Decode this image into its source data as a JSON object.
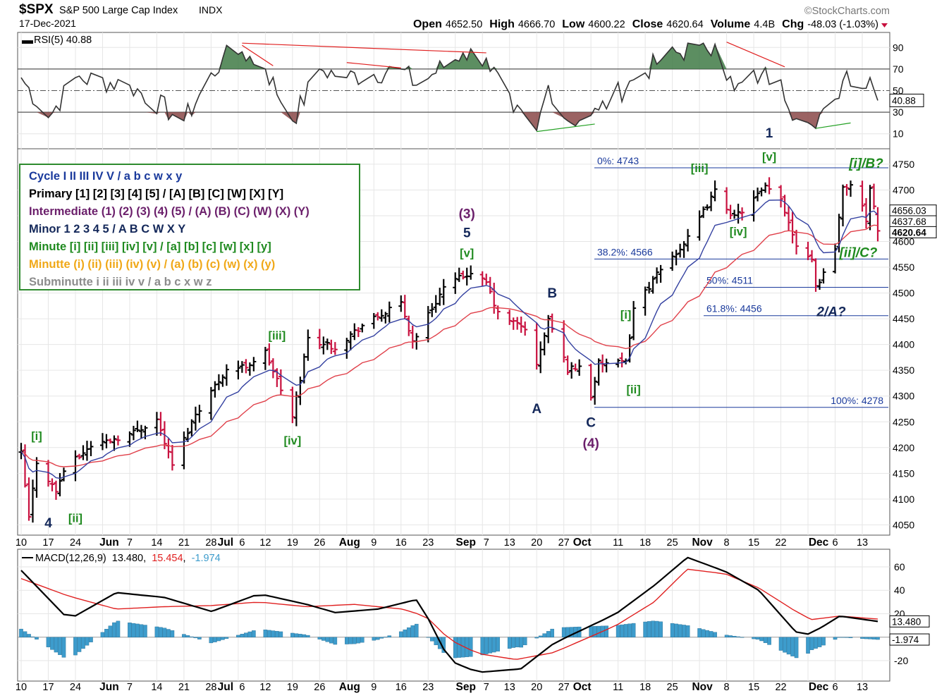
{
  "header": {
    "symbol": "$SPX",
    "name": "S&P 500 Large Cap Index",
    "exchange": "INDX",
    "date": "17-Dec-2021",
    "source": "©StockCharts.com",
    "quote": [
      {
        "label": "Open",
        "value": "4652.50"
      },
      {
        "label": "High",
        "value": "4666.70"
      },
      {
        "label": "Low",
        "value": "4600.22"
      },
      {
        "label": "Close",
        "value": "4620.64"
      },
      {
        "label": "Volume",
        "value": "4.4B"
      },
      {
        "label": "Chg",
        "value": "-48.03 (-1.03%)"
      }
    ],
    "chg_icon": "down-triangle-icon"
  },
  "rsi": {
    "legend": "RSI(5) 40.88",
    "ticks": [
      "90",
      "70",
      "50",
      "30",
      "10"
    ],
    "last_label": "40.88"
  },
  "macd": {
    "legend_name": "MACD(12,26,9)",
    "legend_macd": "13.480",
    "legend_signal": "15.454",
    "legend_hist": "-1.974",
    "ticks": [
      "60",
      "40",
      "20",
      "-20"
    ],
    "last_macd": "13.480",
    "last_hist": "-1.974"
  },
  "price_axis": {
    "ticks": [
      "4750",
      "4700",
      "4650",
      "4600",
      "4550",
      "4500",
      "4450",
      "4400",
      "4350",
      "4300",
      "4250",
      "4200",
      "4150",
      "4100",
      "4050"
    ],
    "last_labels": [
      "4656.03",
      "4637.68",
      "4620.64"
    ]
  },
  "date_axis": [
    {
      "t": "10",
      "bold": false
    },
    {
      "t": "17",
      "bold": false
    },
    {
      "t": "24",
      "bold": false
    },
    {
      "t": "Jun",
      "bold": true
    },
    {
      "t": "7",
      "bold": false
    },
    {
      "t": "14",
      "bold": false
    },
    {
      "t": "21",
      "bold": false
    },
    {
      "t": "28",
      "bold": false
    },
    {
      "t": "Jul",
      "bold": true
    },
    {
      "t": "6",
      "bold": false
    },
    {
      "t": "12",
      "bold": false
    },
    {
      "t": "19",
      "bold": false
    },
    {
      "t": "26",
      "bold": false
    },
    {
      "t": "Aug",
      "bold": true
    },
    {
      "t": "9",
      "bold": false
    },
    {
      "t": "16",
      "bold": false
    },
    {
      "t": "23",
      "bold": false
    },
    {
      "t": "Sep",
      "bold": true
    },
    {
      "t": "7",
      "bold": false
    },
    {
      "t": "13",
      "bold": false
    },
    {
      "t": "20",
      "bold": false
    },
    {
      "t": "27",
      "bold": false
    },
    {
      "t": "Oct",
      "bold": true
    },
    {
      "t": "11",
      "bold": false
    },
    {
      "t": "18",
      "bold": false
    },
    {
      "t": "25",
      "bold": false
    },
    {
      "t": "Nov",
      "bold": true
    },
    {
      "t": "8",
      "bold": false
    },
    {
      "t": "15",
      "bold": false
    },
    {
      "t": "22",
      "bold": false
    },
    {
      "t": "Dec",
      "bold": true
    },
    {
      "t": "6",
      "bold": false
    },
    {
      "t": "13",
      "bold": false
    }
  ],
  "legend_box": [
    {
      "text": "Cycle I II III IV V / a b c w x y",
      "color": "#1a3a9c"
    },
    {
      "text": "Primary [1] [2] [3] [4] [5] / [A] [B] [C] [W] [X] [Y]",
      "color": "#000000"
    },
    {
      "text": "Intermediate (1) (2) (3) (4) (5) / (A) (B) (C) (W) (X) (Y)",
      "color": "#6b1f6b"
    },
    {
      "text": "Minor 1 2 3 4 5 / A B C W X Y",
      "color": "#14285a"
    },
    {
      "text": "Minute [i] [ii] [iii] [iv] [v] / [a] [b] [c] [w] [x] [y]",
      "color": "#1f8a1f"
    },
    {
      "text": "Minutte (i) (ii) (iii) (iv) (v) / (a) (b) (c) (w) (x) (y)",
      "color": "#f0a818"
    },
    {
      "text": "Subminutte i ii iii iv v / a b c x w z",
      "color": "#8c8c8c"
    }
  ],
  "fib_levels": [
    {
      "label": "0%: 4743",
      "value": 4743
    },
    {
      "label": "38.2%: 4566",
      "value": 4566
    },
    {
      "label": "50%: 4511",
      "value": 4511
    },
    {
      "label": "61.8%: 4456",
      "value": 4456
    },
    {
      "label": "100%: 4278",
      "value": 4278
    }
  ],
  "wave_labels": [
    {
      "text": "4",
      "color": "#14285a",
      "style": "normal"
    },
    {
      "text": "[i]",
      "color": "#1f8a1f",
      "style": "normal"
    },
    {
      "text": "[ii]",
      "color": "#1f8a1f",
      "style": "normal"
    },
    {
      "text": "[iii]",
      "color": "#1f8a1f",
      "style": "normal"
    },
    {
      "text": "[iv]",
      "color": "#1f8a1f",
      "style": "normal"
    },
    {
      "text": "(3)",
      "color": "#6b1f6b",
      "style": "normal"
    },
    {
      "text": "5",
      "color": "#14285a",
      "style": "normal"
    },
    {
      "text": "[v]",
      "color": "#1f8a1f",
      "style": "normal"
    },
    {
      "text": "A",
      "color": "#14285a",
      "style": "normal"
    },
    {
      "text": "B",
      "color": "#14285a",
      "style": "normal"
    },
    {
      "text": "C",
      "color": "#14285a",
      "style": "normal"
    },
    {
      "text": "(4)",
      "color": "#6b1f6b",
      "style": "normal"
    },
    {
      "text": "[i]",
      "color": "#1f8a1f",
      "style": "normal"
    },
    {
      "text": "[ii]",
      "color": "#1f8a1f",
      "style": "normal"
    },
    {
      "text": "[iii]",
      "color": "#1f8a1f",
      "style": "normal"
    },
    {
      "text": "[iv]",
      "color": "#1f8a1f",
      "style": "normal"
    },
    {
      "text": "1",
      "color": "#14285a",
      "style": "normal"
    },
    {
      "text": "[v]",
      "color": "#1f8a1f",
      "style": "normal"
    },
    {
      "text": "[i]/B?",
      "color": "#1f8a1f",
      "style": "italic"
    },
    {
      "text": "[ii]/C?",
      "color": "#1f8a1f",
      "style": "italic"
    },
    {
      "text": "2/A?",
      "color": "#14285a",
      "style": "italic"
    }
  ],
  "colors": {
    "up_bar": "#000000",
    "down_bar": "#c8103e",
    "ma_fast": "#3340a0",
    "ma_slow": "#e0404a",
    "rsi_line": "#333333",
    "rsi_overbought_fill": "#3f7a45",
    "rsi_oversold_fill": "#8a4848",
    "macd_line": "#000000",
    "signal_line": "#e02020",
    "histogram": "#3d9ccc",
    "fib_line": "#1a3a9c",
    "trend_red": "#e02020",
    "trend_green": "#22a022"
  },
  "chart_data": [
    {
      "type": "ohlc",
      "title": "$SPX S&P 500 Large Cap Index INDX",
      "ylim": [
        4030,
        4780
      ],
      "x_range": [
        "2021-05-10",
        "2021-12-17"
      ],
      "close_points": [
        [
          "2021-05-10",
          4188
        ],
        [
          "2021-05-12",
          4063
        ],
        [
          "2021-05-14",
          4173
        ],
        [
          "2021-05-19",
          4115
        ],
        [
          "2021-05-21",
          4156
        ],
        [
          "2021-05-28",
          4204
        ],
        [
          "2021-06-07",
          4226
        ],
        [
          "2021-06-14",
          4255
        ],
        [
          "2021-06-18",
          4166
        ],
        [
          "2021-06-24",
          4266
        ],
        [
          "2021-07-02",
          4352
        ],
        [
          "2021-07-07",
          4358
        ],
        [
          "2021-07-12",
          4385
        ],
        [
          "2021-07-19",
          4258
        ],
        [
          "2021-07-23",
          4412
        ],
        [
          "2021-07-30",
          4395
        ],
        [
          "2021-08-06",
          4437
        ],
        [
          "2021-08-16",
          4479
        ],
        [
          "2021-08-19",
          4406
        ],
        [
          "2021-08-27",
          4510
        ],
        [
          "2021-09-02",
          4537
        ],
        [
          "2021-09-07",
          4520
        ],
        [
          "2021-09-10",
          4459
        ],
        [
          "2021-09-14",
          4443
        ],
        [
          "2021-09-17",
          4432
        ],
        [
          "2021-09-20",
          4358
        ],
        [
          "2021-09-23",
          4449
        ],
        [
          "2021-09-28",
          4352
        ],
        [
          "2021-10-01",
          4357
        ],
        [
          "2021-10-04",
          4300
        ],
        [
          "2021-10-06",
          4363
        ],
        [
          "2021-10-13",
          4364
        ],
        [
          "2021-10-15",
          4471
        ],
        [
          "2021-10-22",
          4545
        ],
        [
          "2021-10-29",
          4605
        ],
        [
          "2021-11-05",
          4697
        ],
        [
          "2021-11-10",
          4646
        ],
        [
          "2021-11-18",
          4704
        ],
        [
          "2021-11-22",
          4682
        ],
        [
          "2021-11-26",
          4595
        ],
        [
          "2021-11-30",
          4567
        ],
        [
          "2021-12-01",
          4513
        ],
        [
          "2021-12-03",
          4538
        ],
        [
          "2021-12-06",
          4591
        ],
        [
          "2021-12-08",
          4701
        ],
        [
          "2021-12-10",
          4712
        ],
        [
          "2021-12-13",
          4668
        ],
        [
          "2021-12-14",
          4634
        ],
        [
          "2021-12-15",
          4709
        ],
        [
          "2021-12-16",
          4668
        ],
        [
          "2021-12-17",
          4620.64
        ]
      ],
      "last_bar": {
        "open": 4652.5,
        "high": 4666.7,
        "low": 4600.22,
        "close": 4620.64
      },
      "moving_averages_last": [
        4656.03,
        4637.68
      ]
    },
    {
      "type": "line",
      "title": "RSI(5)",
      "ylim": [
        0,
        100
      ],
      "reference_lines": [
        70,
        50,
        30
      ],
      "points": [
        [
          "2021-05-10",
          62
        ],
        [
          "2021-05-17",
          25
        ],
        [
          "2021-05-24",
          62
        ],
        [
          "2021-06-07",
          55
        ],
        [
          "2021-06-21",
          22
        ],
        [
          "2021-07-01",
          80
        ],
        [
          "2021-07-06",
          86
        ],
        [
          "2021-07-12",
          70
        ],
        [
          "2021-07-19",
          22
        ],
        [
          "2021-07-26",
          70
        ],
        [
          "2021-08-02",
          62
        ],
        [
          "2021-08-16",
          70
        ],
        [
          "2021-08-20",
          55
        ],
        [
          "2021-09-01",
          85
        ],
        [
          "2021-09-07",
          80
        ],
        [
          "2021-09-14",
          30
        ],
        [
          "2021-09-20",
          13
        ],
        [
          "2021-09-23",
          55
        ],
        [
          "2021-09-28",
          22
        ],
        [
          "2021-10-04",
          27
        ],
        [
          "2021-10-06",
          32
        ],
        [
          "2021-10-15",
          60
        ],
        [
          "2021-10-22",
          78
        ],
        [
          "2021-11-01",
          92
        ],
        [
          "2021-11-05",
          93
        ],
        [
          "2021-11-10",
          50
        ],
        [
          "2021-11-17",
          65
        ],
        [
          "2021-11-22",
          60
        ],
        [
          "2021-11-26",
          24
        ],
        [
          "2021-11-30",
          18
        ],
        [
          "2021-12-01",
          15
        ],
        [
          "2021-12-06",
          42
        ],
        [
          "2021-12-09",
          68
        ],
        [
          "2021-12-13",
          52
        ],
        [
          "2021-12-15",
          62
        ],
        [
          "2021-12-17",
          40.88
        ]
      ]
    },
    {
      "type": "line",
      "title": "MACD(12,26,9)",
      "ylim": [
        -35,
        72
      ],
      "series": [
        {
          "name": "MACD",
          "values": [
            [
              0,
              57
            ],
            [
              10,
              15
            ],
            [
              20,
              38
            ],
            [
              30,
              34
            ],
            [
              40,
              22
            ],
            [
              50,
              37
            ],
            [
              60,
              28
            ],
            [
              66,
              21
            ],
            [
              75,
              24
            ],
            [
              83,
              32
            ],
            [
              85,
              20
            ],
            [
              90,
              -20
            ],
            [
              96,
              -30
            ],
            [
              105,
              -27
            ],
            [
              112,
              -5
            ],
            [
              125,
              20
            ],
            [
              133,
              44
            ],
            [
              140,
              68
            ],
            [
              148,
              56
            ],
            [
              155,
              40
            ],
            [
              162,
              8
            ],
            [
              164,
              0
            ],
            [
              168,
              8
            ],
            [
              172,
              18
            ],
            [
              180,
              13.48
            ]
          ]
        },
        {
          "name": "Signal",
          "values": [
            [
              0,
              50
            ],
            [
              10,
              35
            ],
            [
              20,
              24
            ],
            [
              30,
              26
            ],
            [
              40,
              27
            ],
            [
              50,
              30
            ],
            [
              60,
              26
            ],
            [
              70,
              28
            ],
            [
              80,
              24
            ],
            [
              85,
              18
            ],
            [
              90,
              -2
            ],
            [
              96,
              -14
            ],
            [
              104,
              -19
            ],
            [
              112,
              -13
            ],
            [
              125,
              10
            ],
            [
              133,
              30
            ],
            [
              140,
              58
            ],
            [
              148,
              54
            ],
            [
              155,
              42
            ],
            [
              162,
              24
            ],
            [
              166,
              15
            ],
            [
              172,
              18
            ],
            [
              180,
              15.454
            ]
          ]
        }
      ],
      "histogram_last": -1.974
    }
  ]
}
